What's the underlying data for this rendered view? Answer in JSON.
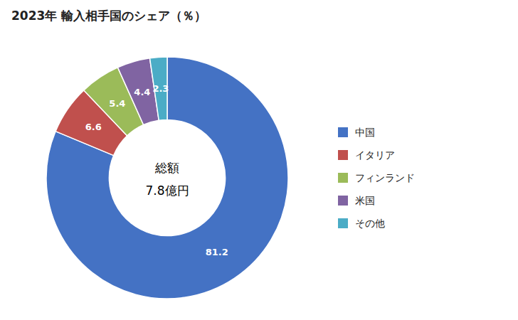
{
  "chart_data": {
    "type": "donut",
    "title": "2023年 輸入相手国のシェア（％）",
    "annotations": [
      "総額",
      "7.8億円"
    ],
    "categories": [
      "中国",
      "イタリア",
      "フィンランド",
      "米国",
      "その他"
    ],
    "values": [
      81.2,
      6.6,
      5.4,
      4.4,
      2.3
    ],
    "colors": [
      "#4472C4",
      "#C0504D",
      "#9BBB59",
      "#8064A2",
      "#4BACC6"
    ],
    "data_labels": true,
    "legend": "right"
  }
}
